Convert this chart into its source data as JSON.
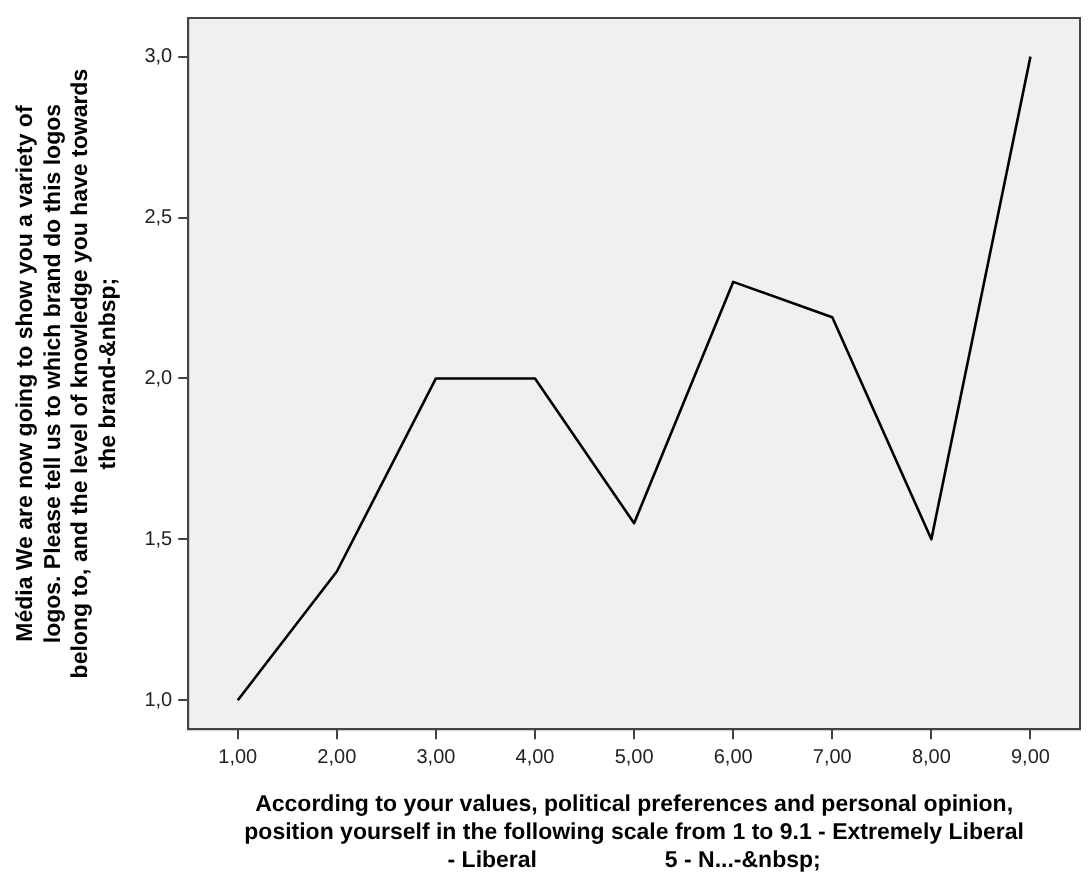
{
  "chart_data": {
    "type": "line",
    "xlabel": "According to your values, political preferences and personal opinion,\nposition yourself in the following scale from 1 to 9.1 - Extremely Liberal\n- Liberal                    5 - N...-&nbsp;",
    "ylabel": "Média We are now going to show you a variety of\nlogos. Please tell us to which brand do this logos\nbelong to, and the level of knowledge you have towards\nthe brand-&nbsp;",
    "categories": [
      "1,00",
      "2,00",
      "3,00",
      "4,00",
      "5,00",
      "6,00",
      "7,00",
      "8,00",
      "9,00"
    ],
    "values": [
      1.0,
      1.4,
      2.0,
      2.0,
      1.55,
      2.3,
      2.19,
      1.5,
      3.0
    ],
    "color": "#000000",
    "marker": "none",
    "ylim": [
      0.91,
      3.12
    ],
    "yticks": [
      {
        "value": 1.0,
        "label": "1,0"
      },
      {
        "value": 1.5,
        "label": "1,5"
      },
      {
        "value": 2.0,
        "label": "2,0"
      },
      {
        "value": 2.5,
        "label": "2,5"
      },
      {
        "value": 3.0,
        "label": "3,0"
      }
    ]
  }
}
